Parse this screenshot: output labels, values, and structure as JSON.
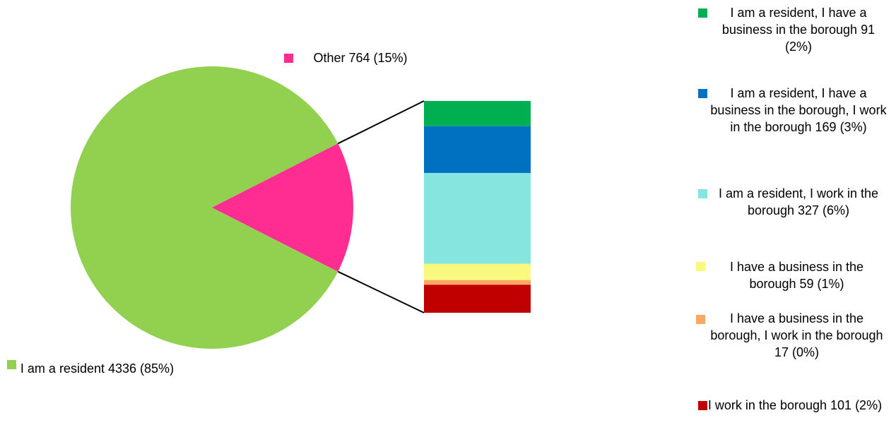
{
  "chart_data": {
    "type": "pie_of_bar",
    "categories": [
      "I am a resident",
      "Other"
    ],
    "values": [
      4336,
      764
    ],
    "value_labels": [
      "4336 (85%)",
      "764 (15%)"
    ],
    "colors": [
      "#92d050",
      "#ff2d92"
    ],
    "breakdown": {
      "categories": [
        "I am a resident, I have a business in the borough",
        "I am a resident, I have a business in the borough, I work in the borough",
        "I am a resident, I work in the borough",
        "I have a business in the borough",
        "I have a business in the borough, I work in the borough",
        "I work in the borough"
      ],
      "values": [
        91,
        169,
        327,
        59,
        17,
        101
      ],
      "value_labels": [
        "91 (2%)",
        "169 (3%)",
        "327 (6%)",
        "59 (1%)",
        "17 (0%)",
        "101 (2%)"
      ],
      "colors": [
        "#00b050",
        "#0070c0",
        "#87e5e0",
        "#f9f97f",
        "#f9a865",
        "#c00000"
      ]
    }
  }
}
